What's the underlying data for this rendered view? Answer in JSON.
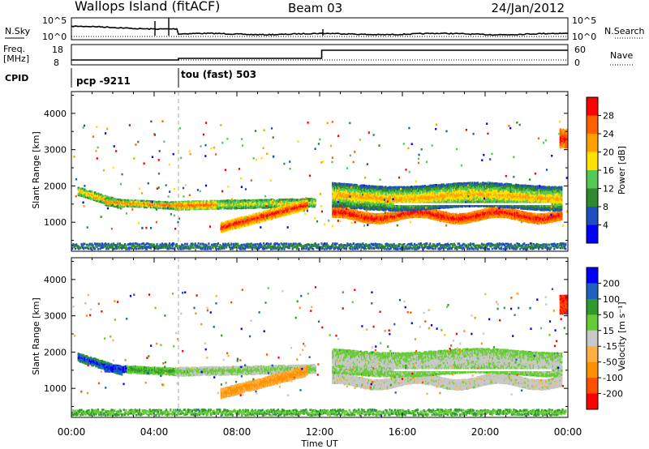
{
  "header": {
    "station": "Wallops Island (fitACF)",
    "beam": "Beam 03",
    "date": "24/Jan/2012"
  },
  "panels": {
    "nsky": {
      "left_label": "N.Sky",
      "right_label": "N.Search",
      "left_ticks": [
        "10^5",
        "10^0"
      ],
      "right_ticks": [
        "10^5",
        "10^0"
      ]
    },
    "freq": {
      "left_label_1": "Freq.",
      "left_label_2": "[MHz]",
      "right_label": "Nave",
      "left_ticks": [
        "18",
        "8"
      ],
      "right_ticks": [
        "60",
        "0"
      ]
    },
    "cpid": {
      "label": "CPID",
      "programs": [
        "pcp -9211",
        "tou (fast) 503"
      ]
    }
  },
  "colors": {
    "power_scale": [
      "#0000ff",
      "#1f4fbf",
      "#2f8a2f",
      "#55c855",
      "#ffe000",
      "#ffa000",
      "#ff6000",
      "#ff0000"
    ],
    "velocity_scale": [
      "#ff0000",
      "#ff5000",
      "#ff9000",
      "#ffb040",
      "#c8c8c8",
      "#66cc33",
      "#2e9a2e",
      "#2060c0",
      "#0000ff"
    ]
  },
  "chart_data": [
    {
      "type": "heatmap",
      "title": "",
      "xlabel": "",
      "ylabel": "Slant Range [km]",
      "xlim_hours": [
        0,
        24
      ],
      "ylim": [
        200,
        4600
      ],
      "y_ticks": [
        1000,
        2000,
        3000,
        4000
      ],
      "colorbar": {
        "label": "Power [dB]",
        "ticks": [
          "4",
          "8",
          "12",
          "16",
          "20",
          "24",
          "28"
        ],
        "range": [
          0,
          32
        ]
      }
    },
    {
      "type": "heatmap",
      "title": "",
      "xlabel": "Time UT",
      "ylabel": "Slant Range [km]",
      "xlim_hours": [
        0,
        24
      ],
      "ylim": [
        200,
        4600
      ],
      "y_ticks": [
        1000,
        2000,
        3000,
        4000
      ],
      "x_ticks": [
        "00:00",
        "04:00",
        "08:00",
        "12:00",
        "16:00",
        "20:00",
        "00:00"
      ],
      "colorbar": {
        "label": "Velocity [m s⁻¹]",
        "ticks": [
          "200",
          "100",
          "50",
          "15",
          "-15",
          "-50",
          "-100",
          "-200"
        ]
      }
    }
  ]
}
